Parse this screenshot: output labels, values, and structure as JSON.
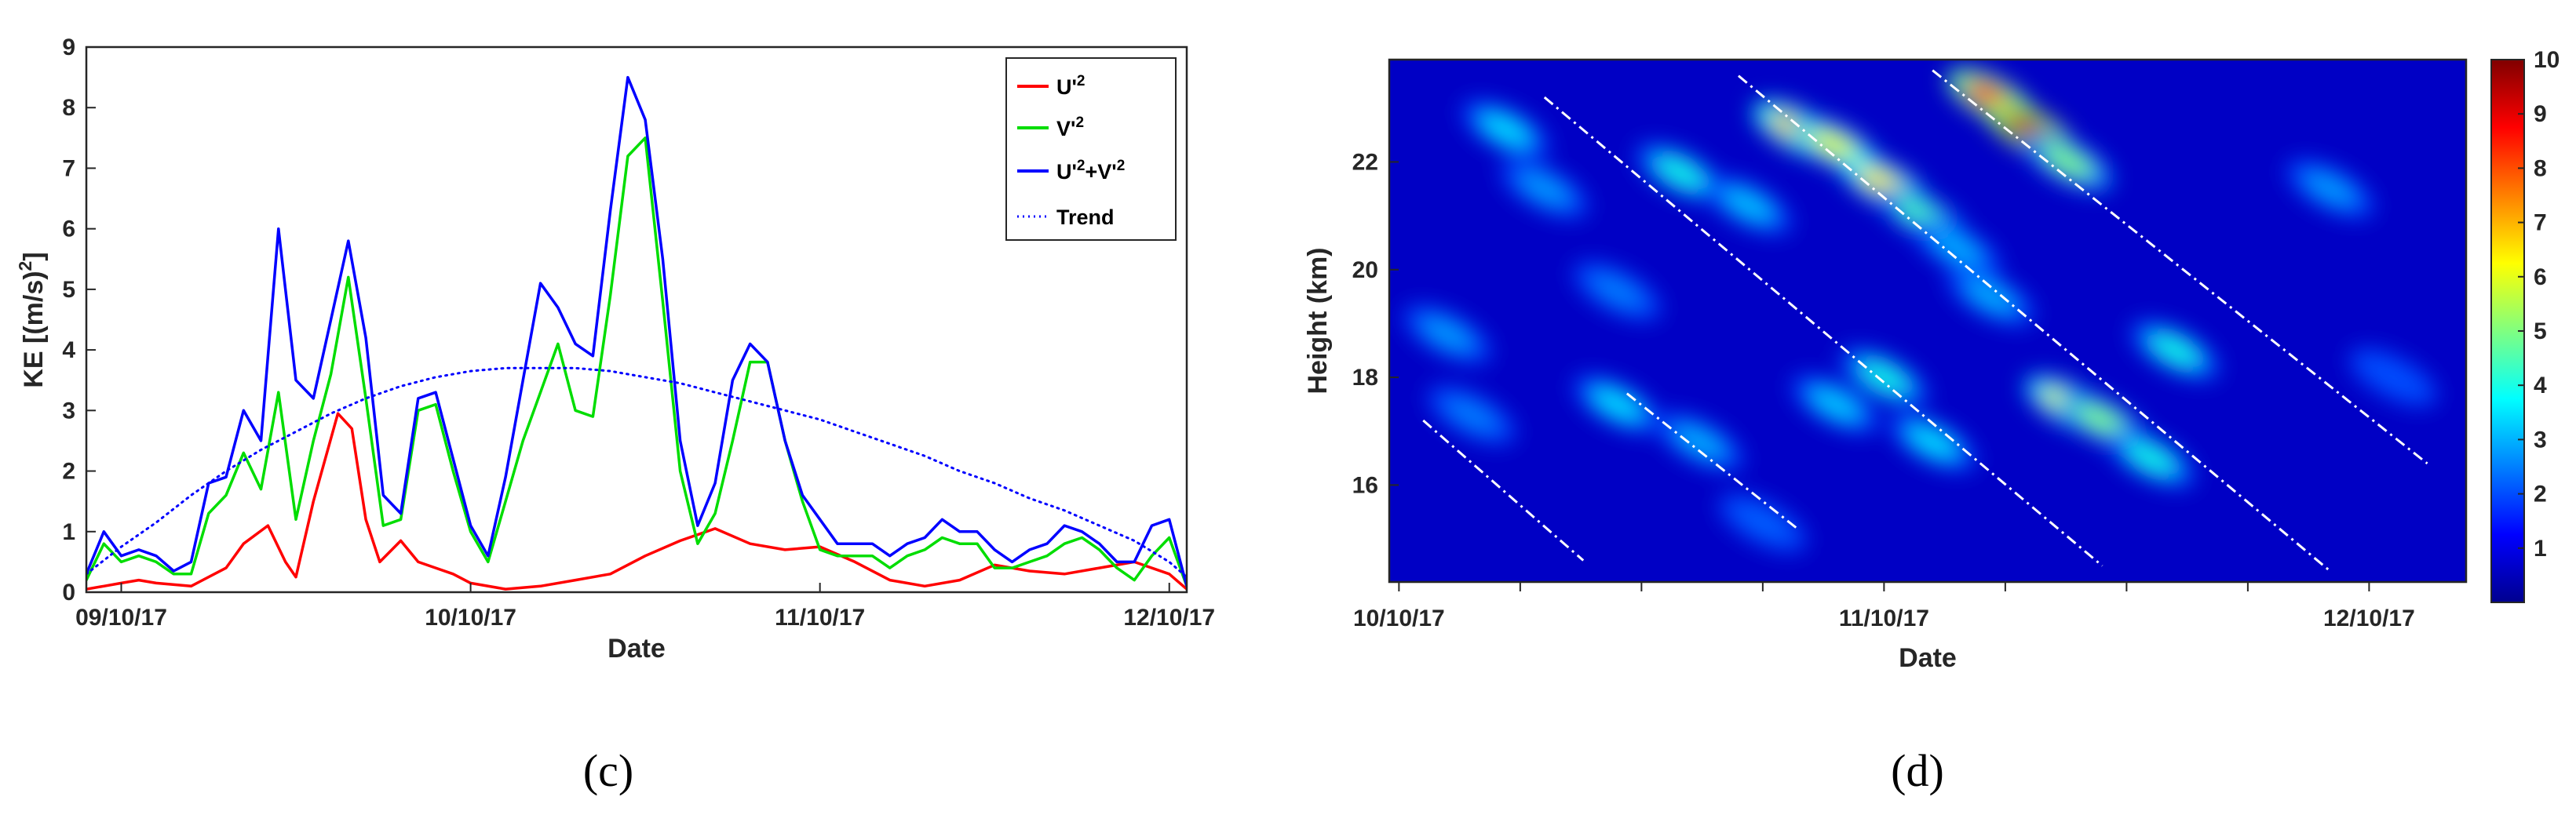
{
  "chart_data": [
    {
      "id": "c",
      "type": "line",
      "panel_label": "(c)",
      "xlabel": "Date",
      "ylabel": "KE [(m/s)",
      "ylabel_sup": "2",
      "ylabel_end": "]",
      "xlim": [
        8.9,
        12.05
      ],
      "ylim": [
        0,
        9
      ],
      "yticks": [
        0,
        1,
        2,
        3,
        4,
        5,
        6,
        7,
        8,
        9
      ],
      "xticks": [
        {
          "value": 9,
          "label": "09/10/17"
        },
        {
          "value": 10,
          "label": "10/10/17"
        },
        {
          "value": 11,
          "label": "11/10/17"
        },
        {
          "value": 12,
          "label": "12/10/17"
        }
      ],
      "legend": {
        "placement": "top-right",
        "entries": [
          {
            "label": "U'",
            "sup": "2",
            "color": "#ff0000"
          },
          {
            "label": "V'",
            "sup": "2",
            "color": "#00dd00"
          },
          {
            "label": "U'",
            "sup": "2",
            "label2": "+V'",
            "sup2": "2",
            "color": "#0000ff"
          },
          {
            "label": "Trend",
            "color": "#0000ff",
            "dotted": true
          }
        ]
      },
      "series": [
        {
          "name": "U'^2",
          "color": "#ff0000",
          "x": [
            8.9,
            8.95,
            9.0,
            9.05,
            9.1,
            9.2,
            9.3,
            9.35,
            9.42,
            9.47,
            9.5,
            9.55,
            9.62,
            9.66,
            9.7,
            9.74,
            9.8,
            9.85,
            9.9,
            9.95,
            10.0,
            10.1,
            10.2,
            10.3,
            10.4,
            10.5,
            10.6,
            10.7,
            10.8,
            10.9,
            11.0,
            11.1,
            11.2,
            11.3,
            11.4,
            11.5,
            11.6,
            11.7,
            11.8,
            11.9,
            12.0,
            12.05
          ],
          "values": [
            0.05,
            0.1,
            0.15,
            0.2,
            0.15,
            0.1,
            0.4,
            0.8,
            1.1,
            0.5,
            0.25,
            1.5,
            2.95,
            2.7,
            1.2,
            0.5,
            0.85,
            0.5,
            0.4,
            0.3,
            0.15,
            0.05,
            0.1,
            0.2,
            0.3,
            0.6,
            0.85,
            1.05,
            0.8,
            0.7,
            0.75,
            0.5,
            0.2,
            0.1,
            0.2,
            0.45,
            0.35,
            0.3,
            0.4,
            0.5,
            0.3,
            0.05
          ]
        },
        {
          "name": "V'^2",
          "color": "#00dd00",
          "x": [
            8.9,
            8.95,
            9.0,
            9.05,
            9.1,
            9.15,
            9.2,
            9.25,
            9.3,
            9.35,
            9.4,
            9.45,
            9.5,
            9.55,
            9.6,
            9.65,
            9.7,
            9.75,
            9.8,
            9.85,
            9.9,
            9.95,
            10.0,
            10.05,
            10.1,
            10.15,
            10.2,
            10.25,
            10.3,
            10.35,
            10.4,
            10.45,
            10.5,
            10.55,
            10.6,
            10.65,
            10.7,
            10.75,
            10.8,
            10.85,
            10.9,
            10.95,
            11.0,
            11.05,
            11.1,
            11.15,
            11.2,
            11.25,
            11.3,
            11.35,
            11.4,
            11.45,
            11.5,
            11.55,
            11.6,
            11.65,
            11.7,
            11.75,
            11.8,
            11.85,
            11.9,
            11.95,
            12.0,
            12.05
          ],
          "values": [
            0.2,
            0.8,
            0.5,
            0.6,
            0.5,
            0.3,
            0.3,
            1.3,
            1.6,
            2.3,
            1.7,
            3.3,
            1.2,
            2.5,
            3.6,
            5.2,
            3.2,
            1.1,
            1.2,
            3.0,
            3.1,
            2.0,
            1.0,
            0.5,
            1.5,
            2.5,
            3.3,
            4.1,
            3.0,
            2.9,
            4.9,
            7.2,
            7.5,
            4.8,
            2.0,
            0.8,
            1.3,
            2.5,
            3.8,
            3.8,
            2.5,
            1.5,
            0.7,
            0.6,
            0.6,
            0.6,
            0.4,
            0.6,
            0.7,
            0.9,
            0.8,
            0.8,
            0.4,
            0.4,
            0.5,
            0.6,
            0.8,
            0.9,
            0.7,
            0.4,
            0.2,
            0.6,
            0.9,
            0.1
          ]
        },
        {
          "name": "U'^2+V'^2",
          "color": "#0000ff",
          "x": [
            8.9,
            8.95,
            9.0,
            9.05,
            9.1,
            9.15,
            9.2,
            9.25,
            9.3,
            9.35,
            9.4,
            9.45,
            9.5,
            9.55,
            9.6,
            9.65,
            9.7,
            9.75,
            9.8,
            9.85,
            9.9,
            9.95,
            10.0,
            10.05,
            10.1,
            10.15,
            10.2,
            10.25,
            10.3,
            10.35,
            10.4,
            10.45,
            10.5,
            10.55,
            10.6,
            10.65,
            10.7,
            10.75,
            10.8,
            10.85,
            10.9,
            10.95,
            11.0,
            11.05,
            11.1,
            11.15,
            11.2,
            11.25,
            11.3,
            11.35,
            11.4,
            11.45,
            11.5,
            11.55,
            11.6,
            11.65,
            11.7,
            11.75,
            11.8,
            11.85,
            11.9,
            11.95,
            12.0,
            12.05
          ],
          "values": [
            0.3,
            1.0,
            0.6,
            0.7,
            0.6,
            0.35,
            0.5,
            1.8,
            1.9,
            3.0,
            2.5,
            6.0,
            3.5,
            3.2,
            4.5,
            5.8,
            4.2,
            1.6,
            1.3,
            3.2,
            3.3,
            2.2,
            1.1,
            0.6,
            1.9,
            3.5,
            5.1,
            4.7,
            4.1,
            3.9,
            6.3,
            8.5,
            7.8,
            5.5,
            2.5,
            1.1,
            1.8,
            3.5,
            4.1,
            3.8,
            2.5,
            1.6,
            1.2,
            0.8,
            0.8,
            0.8,
            0.6,
            0.8,
            0.9,
            1.2,
            1.0,
            1.0,
            0.7,
            0.5,
            0.7,
            0.8,
            1.1,
            1.0,
            0.8,
            0.5,
            0.5,
            1.1,
            1.2,
            0.1
          ]
        },
        {
          "name": "Trend",
          "color": "#0000ff",
          "dotted": true,
          "x": [
            8.9,
            9.0,
            9.1,
            9.2,
            9.3,
            9.4,
            9.5,
            9.6,
            9.7,
            9.8,
            9.9,
            10.0,
            10.1,
            10.2,
            10.3,
            10.4,
            10.5,
            10.6,
            10.7,
            10.8,
            10.9,
            11.0,
            11.1,
            11.2,
            11.3,
            11.4,
            11.5,
            11.6,
            11.7,
            11.8,
            11.9,
            12.0,
            12.05
          ],
          "values": [
            0.3,
            0.75,
            1.15,
            1.6,
            2.0,
            2.35,
            2.65,
            2.95,
            3.2,
            3.4,
            3.55,
            3.65,
            3.7,
            3.7,
            3.7,
            3.65,
            3.55,
            3.45,
            3.3,
            3.15,
            3.0,
            2.85,
            2.65,
            2.45,
            2.25,
            2.0,
            1.8,
            1.55,
            1.35,
            1.1,
            0.85,
            0.5,
            0.25
          ]
        }
      ]
    },
    {
      "id": "d",
      "type": "heatmap",
      "panel_label": "(d)",
      "xlabel": "Date",
      "ylabel": "Height (km)",
      "xlim": [
        9.98,
        12.2
      ],
      "ylim": [
        14.2,
        23.9
      ],
      "xticks": [
        {
          "value": 10,
          "label": "10/10/17"
        },
        {
          "value": 10.25,
          "label": ""
        },
        {
          "value": 10.5,
          "label": ""
        },
        {
          "value": 10.75,
          "label": ""
        },
        {
          "value": 11,
          "label": "11/10/17"
        },
        {
          "value": 11.25,
          "label": ""
        },
        {
          "value": 11.5,
          "label": ""
        },
        {
          "value": 11.75,
          "label": ""
        },
        {
          "value": 12,
          "label": "12/10/17"
        }
      ],
      "yticks": [
        16,
        18,
        20,
        22
      ],
      "colorbar": {
        "min": 0,
        "max": 10,
        "ticks": [
          1,
          2,
          3,
          4,
          5,
          6,
          7,
          8,
          9,
          10
        ],
        "colormap": "jet"
      },
      "colormap_stops": [
        "#00008f",
        "#0000ff",
        "#0080ff",
        "#00ffff",
        "#80ff80",
        "#ffff00",
        "#ff8000",
        "#ff0000",
        "#800000"
      ],
      "background_value": 0.6,
      "features": [
        {
          "x": 10.22,
          "y": 22.6,
          "value": 3.5
        },
        {
          "x": 10.3,
          "y": 21.5,
          "value": 2.8
        },
        {
          "x": 10.58,
          "y": 21.8,
          "value": 4.0
        },
        {
          "x": 10.72,
          "y": 21.2,
          "value": 3.2
        },
        {
          "x": 10.82,
          "y": 22.6,
          "value": 7.0
        },
        {
          "x": 10.9,
          "y": 22.3,
          "value": 6.0
        },
        {
          "x": 11.0,
          "y": 21.6,
          "value": 6.5
        },
        {
          "x": 11.08,
          "y": 21.0,
          "value": 4.5
        },
        {
          "x": 11.22,
          "y": 23.2,
          "value": 8.5
        },
        {
          "x": 11.3,
          "y": 22.6,
          "value": 9.5
        },
        {
          "x": 11.38,
          "y": 22.0,
          "value": 5.0
        },
        {
          "x": 11.15,
          "y": 20.4,
          "value": 3.0
        },
        {
          "x": 10.1,
          "y": 18.8,
          "value": 2.8
        },
        {
          "x": 10.15,
          "y": 17.3,
          "value": 2.5
        },
        {
          "x": 10.45,
          "y": 17.5,
          "value": 3.5
        },
        {
          "x": 10.62,
          "y": 16.8,
          "value": 3.0
        },
        {
          "x": 10.9,
          "y": 17.5,
          "value": 3.3
        },
        {
          "x": 11.0,
          "y": 18.0,
          "value": 4.0
        },
        {
          "x": 11.1,
          "y": 16.8,
          "value": 3.5
        },
        {
          "x": 11.38,
          "y": 17.5,
          "value": 6.0
        },
        {
          "x": 11.45,
          "y": 17.2,
          "value": 5.0
        },
        {
          "x": 11.55,
          "y": 16.5,
          "value": 4.0
        },
        {
          "x": 11.6,
          "y": 18.5,
          "value": 4.0
        },
        {
          "x": 11.22,
          "y": 19.5,
          "value": 3.0
        },
        {
          "x": 11.92,
          "y": 21.5,
          "value": 2.8
        },
        {
          "x": 10.45,
          "y": 19.6,
          "value": 2.5
        },
        {
          "x": 12.05,
          "y": 18.0,
          "value": 2.0
        },
        {
          "x": 10.75,
          "y": 15.3,
          "value": 2.2
        }
      ],
      "trend_lines": [
        {
          "x": [
            10.05,
            10.38
          ],
          "y": [
            17.2,
            14.6
          ]
        },
        {
          "x": [
            10.47,
            10.82
          ],
          "y": [
            17.7,
            15.2
          ]
        },
        {
          "x": [
            10.3,
            11.45
          ],
          "y": [
            23.2,
            14.5
          ]
        },
        {
          "x": [
            10.7,
            11.92
          ],
          "y": [
            23.6,
            14.4
          ]
        },
        {
          "x": [
            11.1,
            12.12
          ],
          "y": [
            23.7,
            16.4
          ]
        }
      ]
    }
  ]
}
